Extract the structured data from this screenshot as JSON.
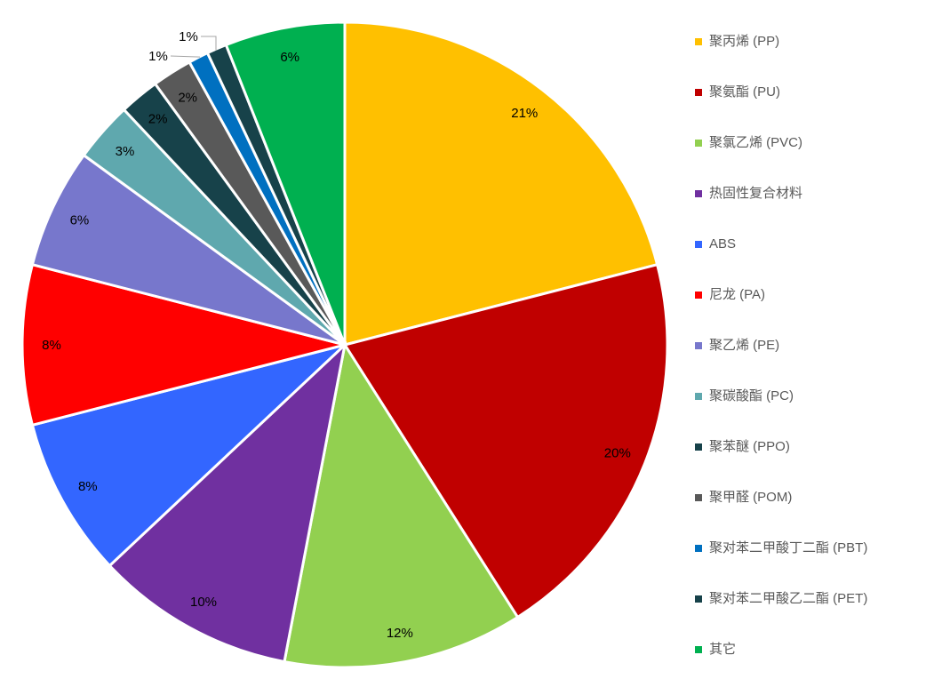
{
  "chart_data": {
    "type": "pie",
    "start": "top, clockwise",
    "legend_position": "right",
    "series": [
      {
        "name": "聚丙烯 (PP)",
        "value": 21,
        "label": "21%",
        "color": "#FFC000"
      },
      {
        "name": "聚氨酯 (PU)",
        "value": 20,
        "label": "20%",
        "color": "#C00000"
      },
      {
        "name": "聚氯乙烯 (PVC)",
        "value": 12,
        "label": "12%",
        "color": "#92D050"
      },
      {
        "name": "热固性复合材料",
        "value": 10,
        "label": "10%",
        "color": "#7030A0"
      },
      {
        "name": "ABS",
        "value": 8,
        "label": "8%",
        "color": "#3366FF"
      },
      {
        "name": "尼龙 (PA)",
        "value": 8,
        "label": "8%",
        "color": "#FF0000"
      },
      {
        "name": "聚乙烯 (PE)",
        "value": 6,
        "label": "6%",
        "color": "#7777CC"
      },
      {
        "name": "聚碳酸酯 (PC)",
        "value": 3,
        "label": "3%",
        "color": "#5FA8AE"
      },
      {
        "name": "聚苯醚 (PPO)",
        "value": 2,
        "label": "2%",
        "color": "#17424A"
      },
      {
        "name": "聚甲醛 (POM)",
        "value": 2,
        "label": "2%",
        "color": "#595959"
      },
      {
        "name": "聚对苯二甲酸丁二酯 (PBT)",
        "value": 1,
        "label": "1%",
        "color": "#0070C0"
      },
      {
        "name": "聚对苯二甲酸乙二酯 (PET)",
        "value": 1,
        "label": "1%",
        "color": "#17424A"
      },
      {
        "name": "其它",
        "value": 6,
        "label": "6%",
        "color": "#00B050"
      }
    ]
  }
}
